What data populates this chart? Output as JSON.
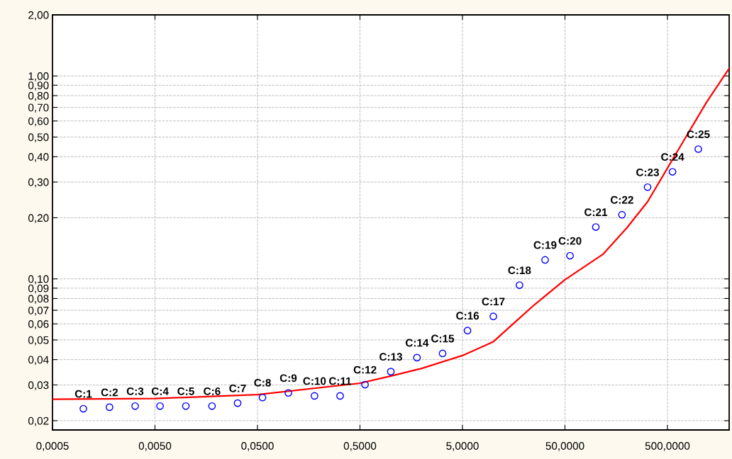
{
  "chart_data": {
    "type": "scatter",
    "x": [
      0.001,
      0.0018,
      0.0032,
      0.0056,
      0.01,
      0.018,
      0.032,
      0.056,
      0.1,
      0.18,
      0.32,
      0.56,
      1,
      1.8,
      3.2,
      5.6,
      10,
      18,
      32,
      56,
      100,
      180,
      320,
      560,
      1000
    ],
    "series": [
      {
        "color": "#0000ff",
        "marker": "circle",
        "values": [
          0.0229,
          0.0233,
          0.0236,
          0.0236,
          0.0236,
          0.0236,
          0.0244,
          0.026,
          0.0274,
          0.0265,
          0.0265,
          0.0301,
          0.0349,
          0.0409,
          0.0429,
          0.0556,
          0.0653,
          0.0931,
          0.124,
          0.13,
          0.18,
          0.207,
          0.283,
          0.337,
          0.436
        ]
      },
      {
        "type": "line",
        "color": "#ff0000",
        "marker": "none",
        "line_style": "solid",
        "x": [
          0.0005,
          0.005,
          0.05,
          0.5,
          1,
          2,
          5,
          10,
          18,
          25.4,
          50,
          117,
          200,
          320,
          756,
          1200,
          2000
        ],
        "values": [
          0.0255,
          0.0257,
          0.0269,
          0.0306,
          0.0332,
          0.0362,
          0.0419,
          0.049,
          0.064,
          0.0748,
          0.099,
          0.132,
          0.178,
          0.24,
          0.5,
          0.74,
          1.09
        ]
      }
    ],
    "log": "xy",
    "xlim": [
      0.0005,
      2000
    ],
    "xticks": [
      {
        "value": 0.0005,
        "label": "0,0005"
      },
      {
        "value": 0.005,
        "label": "0,0050"
      },
      {
        "value": 0.05,
        "label": "0,0500"
      },
      {
        "value": 0.5,
        "label": "0,5000"
      },
      {
        "value": 5,
        "label": "5,0000"
      },
      {
        "value": 50,
        "label": "50,0000"
      },
      {
        "value": 500,
        "label": "500,0000"
      }
    ],
    "ylim": [
      0.018,
      2.0
    ],
    "yticks": [
      {
        "value": 0.02,
        "label": "0,02"
      },
      {
        "value": 0.03,
        "label": "0,03"
      },
      {
        "value": 0.04,
        "label": "0,04"
      },
      {
        "value": 0.05,
        "label": "0,05"
      },
      {
        "value": 0.06,
        "label": "0,06"
      },
      {
        "value": 0.07,
        "label": "0,07"
      },
      {
        "value": 0.08,
        "label": "0,08"
      },
      {
        "value": 0.09,
        "label": "0,09"
      },
      {
        "value": 0.1,
        "label": "0,10"
      },
      {
        "value": 0.2,
        "label": "0,20"
      },
      {
        "value": 0.3,
        "label": "0,30"
      },
      {
        "value": 0.4,
        "label": "0,40"
      },
      {
        "value": 0.5,
        "label": "0,50"
      },
      {
        "value": 0.6,
        "label": "0,60"
      },
      {
        "value": 0.7,
        "label": "0,70"
      },
      {
        "value": 0.8,
        "label": "0,80"
      },
      {
        "value": 0.9,
        "label": "0,90"
      },
      {
        "value": 1.0,
        "label": "1,00"
      },
      {
        "value": 2.0,
        "label": "2,00"
      }
    ],
    "grid": true,
    "annotations": [
      {
        "text": "C:1",
        "x": 0.001,
        "y": 0.0229
      },
      {
        "text": "C:2",
        "x": 0.0018,
        "y": 0.0233
      },
      {
        "text": "C:3",
        "x": 0.0032,
        "y": 0.0236
      },
      {
        "text": "C:4",
        "x": 0.0056,
        "y": 0.0236
      },
      {
        "text": "C:5",
        "x": 0.01,
        "y": 0.0236
      },
      {
        "text": "C:6",
        "x": 0.018,
        "y": 0.0236
      },
      {
        "text": "C:7",
        "x": 0.032,
        "y": 0.0244
      },
      {
        "text": "C:8",
        "x": 0.056,
        "y": 0.026
      },
      {
        "text": "C:9",
        "x": 0.1,
        "y": 0.0274
      },
      {
        "text": "C:10",
        "x": 0.18,
        "y": 0.0265
      },
      {
        "text": "C:11",
        "x": 0.32,
        "y": 0.0265
      },
      {
        "text": "C:12",
        "x": 0.56,
        "y": 0.0301
      },
      {
        "text": "C:13",
        "x": 1,
        "y": 0.0349
      },
      {
        "text": "C:14",
        "x": 1.8,
        "y": 0.0409
      },
      {
        "text": "C:15",
        "x": 3.2,
        "y": 0.0429
      },
      {
        "text": "C:16",
        "x": 5.6,
        "y": 0.0556
      },
      {
        "text": "C:17",
        "x": 10,
        "y": 0.0653
      },
      {
        "text": "C:18",
        "x": 18,
        "y": 0.0931
      },
      {
        "text": "C:19",
        "x": 32,
        "y": 0.124
      },
      {
        "text": "C:20",
        "x": 56,
        "y": 0.13
      },
      {
        "text": "C:21",
        "x": 100,
        "y": 0.18
      },
      {
        "text": "C:22",
        "x": 180,
        "y": 0.207
      },
      {
        "text": "C:23",
        "x": 320,
        "y": 0.283
      },
      {
        "text": "C:24",
        "x": 560,
        "y": 0.337
      },
      {
        "text": "C:25",
        "x": 1000,
        "y": 0.436
      }
    ]
  }
}
